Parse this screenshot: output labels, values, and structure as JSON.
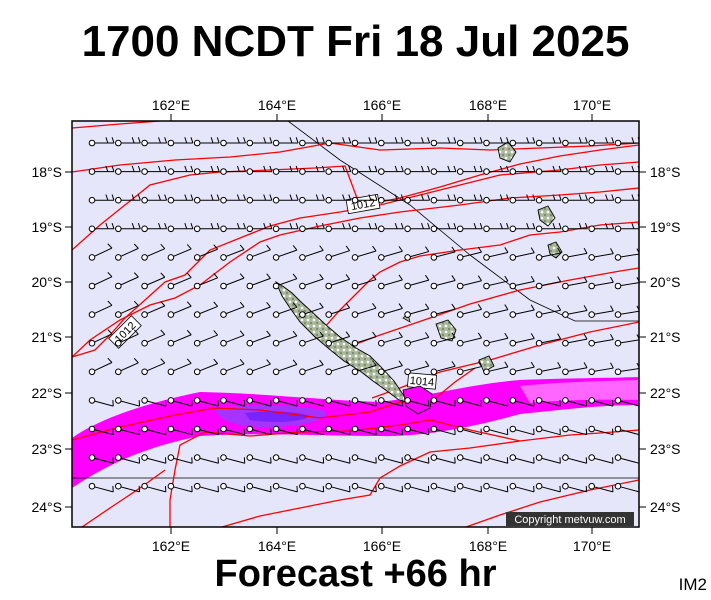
{
  "title": "1700 NCDT Fri 18 Jul 2025",
  "footer": "Forecast +66 hr",
  "product_code": "IM2",
  "copyright": "Copyright metvuw.com",
  "longitude_labels": [
    "162°E",
    "164°E",
    "166°E",
    "168°E",
    "170°E"
  ],
  "latitude_labels": [
    "18°S",
    "19°S",
    "20°S",
    "21°S",
    "22°S",
    "23°S",
    "24°S"
  ],
  "isobar_labels": [
    "1012",
    "1012",
    "1014"
  ],
  "colors": {
    "ocean": "#e6e6fa",
    "land": "#a9b79a",
    "isobar": "#ff0000",
    "precip_light": "#ff00ff",
    "precip_heavy": "#9933ff"
  }
}
